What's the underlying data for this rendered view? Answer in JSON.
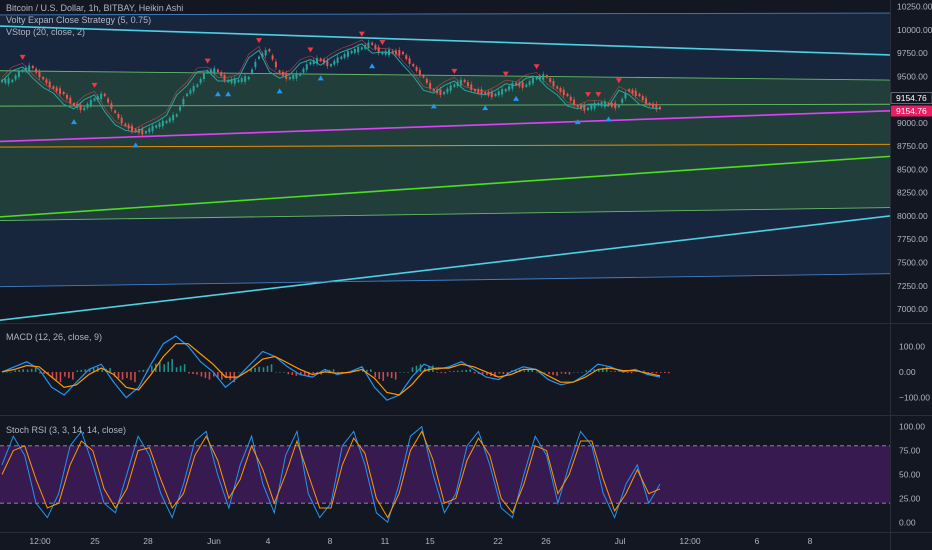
{
  "header": {
    "symbol_line": "Bitcoin / U.S. Dollar, 1h, BITBAY, Heikin Ashi",
    "indicator_1": "Volty Expan Close Strategy (5, 0.75)",
    "indicator_2": "VStop (20, close, 2)"
  },
  "price_tags": {
    "last_price": "9154.76",
    "stop_price": "9154.76",
    "last_color": "#131722",
    "stop_color": "#e91e63"
  },
  "chart_data": [
    {
      "type": "line",
      "pane": "price",
      "y_ticks": [
        10250,
        10000,
        9750,
        9500,
        9250,
        9000,
        8750,
        8500,
        8250,
        8000,
        7750,
        7500,
        7250,
        7000
      ],
      "y_tick_labels": [
        "10250.00",
        "10000.00",
        "9750.00",
        "9500.00",
        "9250.00",
        "9000.00",
        "8750.00",
        "8500.00",
        "8250.00",
        "8000.00",
        "7750.00",
        "7500.00",
        "7250.00",
        "7000.00"
      ],
      "ylim": [
        6850,
        10320
      ],
      "x_tick_labels": [
        "12:00",
        "25",
        "28",
        "Jun",
        "4",
        "8",
        "11",
        "15",
        "22",
        "26",
        "Jul",
        "12:00",
        "6",
        "8"
      ],
      "close_path": [
        9450,
        9560,
        9600,
        9480,
        9380,
        9320,
        9200,
        9150,
        9250,
        9300,
        9120,
        8980,
        8920,
        8900,
        8960,
        9010,
        9080,
        9300,
        9400,
        9550,
        9560,
        9450,
        9450,
        9480,
        9700,
        9780,
        9550,
        9480,
        9520,
        9640,
        9680,
        9620,
        9700,
        9760,
        9800,
        9850,
        9750,
        9760,
        9750,
        9620,
        9500,
        9350,
        9320,
        9400,
        9450,
        9350,
        9320,
        9300,
        9350,
        9420,
        9400,
        9480,
        9500,
        9380,
        9300,
        9180,
        9150,
        9200,
        9200,
        9180,
        9350,
        9300,
        9200,
        9160,
        9154.76
      ],
      "trend_lines": [
        {
          "name": "outer-channel-top",
          "color": "#3f7fc3",
          "from": 10160,
          "to": 10180
        },
        {
          "name": "cyan-descending-trend",
          "color": "#4dd0e1",
          "from": 10040,
          "to": 9730
        },
        {
          "name": "green-channel-top",
          "color": "#66bb6a",
          "from": 9560,
          "to": 9460
        },
        {
          "name": "green-channel-mid",
          "color": "#66bb6a",
          "from": 9180,
          "to": 9200
        },
        {
          "name": "magenta-support",
          "color": "#e040fb",
          "from": 8800,
          "to": 9130
        },
        {
          "name": "orange-level",
          "color": "#ff9800",
          "from": 8740,
          "to": 8770
        },
        {
          "name": "lime-ascending-trend",
          "color": "#4cdf20",
          "from": 7990,
          "to": 8640
        },
        {
          "name": "green-channel-bottom",
          "color": "#66bb6a",
          "from": 7950,
          "to": 8090
        },
        {
          "name": "cyan-ascending-trend",
          "color": "#4dd0e1",
          "from": 6880,
          "to": 8000
        },
        {
          "name": "outer-channel-bottom",
          "color": "#3f7fc3",
          "from": 7240,
          "to": 7380
        }
      ]
    },
    {
      "type": "line",
      "pane": "macd",
      "title": "MACD (12, 26, close, 9)",
      "y_ticks": [
        100,
        0,
        -100
      ],
      "y_tick_labels": [
        "100.00",
        "0.00",
        "−100.00"
      ],
      "ylim": [
        -160,
        175
      ],
      "macd": [
        0,
        20,
        40,
        10,
        -60,
        -90,
        -40,
        10,
        30,
        -40,
        -100,
        -60,
        30,
        110,
        140,
        100,
        40,
        0,
        -60,
        -20,
        30,
        80,
        60,
        20,
        -10,
        -20,
        10,
        -10,
        0,
        20,
        -60,
        -110,
        -90,
        -20,
        30,
        10,
        20,
        40,
        10,
        -20,
        -30,
        0,
        20,
        10,
        -30,
        -50,
        -40,
        -10,
        30,
        20,
        0,
        10,
        -10,
        -20
      ],
      "signal": [
        0,
        10,
        25,
        20,
        -20,
        -60,
        -50,
        -10,
        15,
        -10,
        -60,
        -70,
        -10,
        60,
        110,
        110,
        70,
        30,
        -20,
        -20,
        10,
        50,
        60,
        35,
        10,
        -10,
        0,
        -5,
        -2,
        10,
        -25,
        -80,
        -90,
        -50,
        5,
        15,
        15,
        30,
        20,
        0,
        -20,
        -10,
        10,
        10,
        -15,
        -40,
        -40,
        -20,
        10,
        15,
        5,
        5,
        -5,
        -15
      ]
    },
    {
      "type": "line",
      "pane": "stoch_rsi",
      "title": "Stoch RSI (3, 3, 14, 14, close)",
      "y_ticks": [
        100,
        75,
        50,
        25,
        0
      ],
      "y_tick_labels": [
        "100.00",
        "75.00",
        "50.00",
        "25.00",
        "0.00"
      ],
      "ylim": [
        -8,
        108
      ],
      "band": [
        20,
        80
      ],
      "k": [
        60,
        90,
        70,
        20,
        5,
        30,
        80,
        95,
        60,
        20,
        10,
        50,
        90,
        70,
        30,
        5,
        40,
        85,
        95,
        50,
        15,
        60,
        90,
        40,
        10,
        70,
        95,
        30,
        5,
        20,
        80,
        95,
        60,
        10,
        0,
        40,
        90,
        100,
        50,
        10,
        30,
        80,
        95,
        60,
        15,
        5,
        50,
        90,
        70,
        20,
        60,
        95,
        80,
        30,
        5,
        40,
        60,
        20,
        40
      ],
      "d": [
        50,
        75,
        80,
        45,
        15,
        20,
        60,
        85,
        75,
        35,
        15,
        35,
        75,
        78,
        45,
        15,
        30,
        70,
        90,
        65,
        25,
        45,
        80,
        55,
        20,
        50,
        85,
        50,
        15,
        15,
        60,
        88,
        72,
        25,
        5,
        30,
        75,
        95,
        65,
        20,
        25,
        65,
        88,
        70,
        25,
        10,
        40,
        80,
        75,
        30,
        50,
        85,
        85,
        45,
        12,
        30,
        55,
        30,
        35
      ]
    }
  ]
}
